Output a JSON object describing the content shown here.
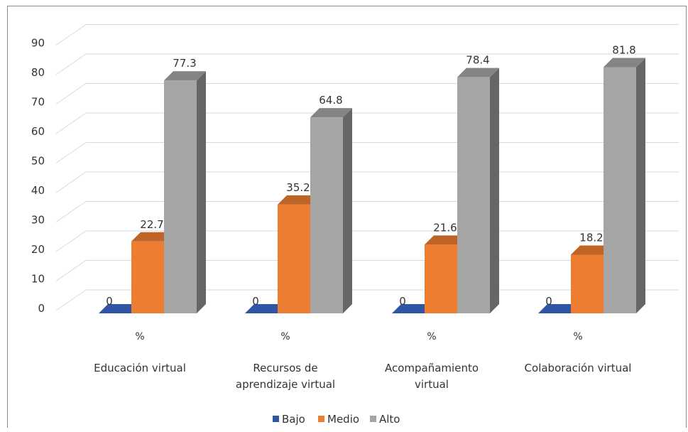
{
  "chart_data": {
    "type": "bar",
    "categories": [
      [
        "Educación virtual"
      ],
      [
        "Recursos de",
        "aprendizaje virtual"
      ],
      [
        "Acompañamiento",
        "virtual"
      ],
      [
        "Colaboración virtual"
      ]
    ],
    "category_unit": "%",
    "series": [
      {
        "name": "Bajo",
        "values": [
          0,
          0,
          0,
          0
        ],
        "color": "#2f55a4"
      },
      {
        "name": "Medio",
        "values": [
          22.7,
          35.2,
          21.6,
          18.2
        ],
        "color": "#ed7d31"
      },
      {
        "name": "Alto",
        "values": [
          77.3,
          64.8,
          78.4,
          81.8
        ],
        "color": "#a5a5a5"
      }
    ],
    "y_ticks": [
      0,
      10,
      20,
      30,
      40,
      50,
      60,
      70,
      80,
      90
    ],
    "ylim": [
      0,
      95
    ],
    "grid": true,
    "legend_position": "bottom",
    "style_3d": true
  }
}
